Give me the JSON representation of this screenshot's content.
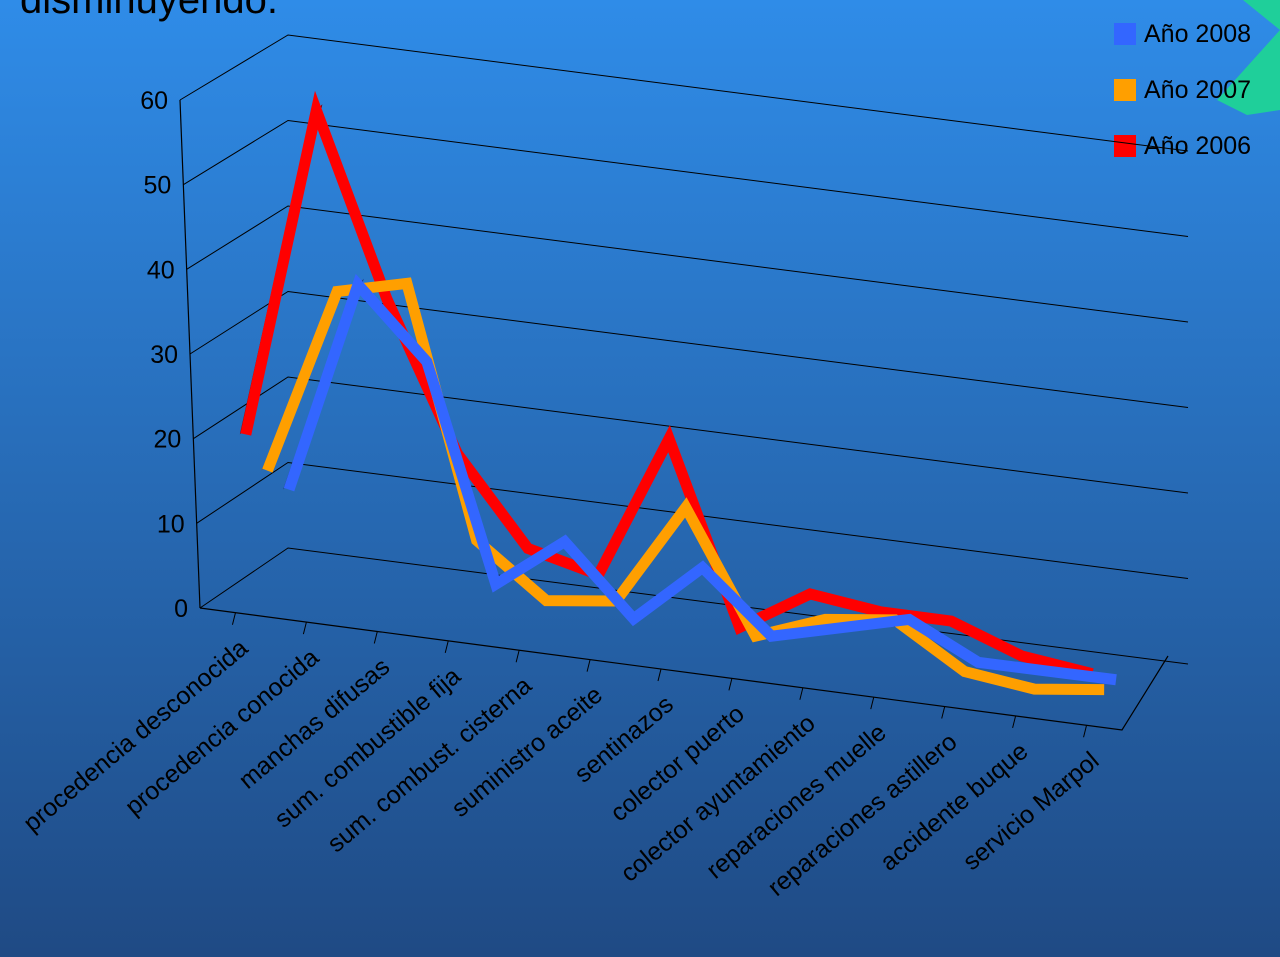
{
  "slide": {
    "title_fragment": "disminuyendo."
  },
  "colors": {
    "background_top": "#2f8ce8",
    "background_bottom": "#1f4a84",
    "grid": "#000000",
    "decoration": "#1fcf9a"
  },
  "chart_data": {
    "type": "line",
    "style": "3d-ribbon",
    "title": "",
    "xlabel": "",
    "ylabel": "",
    "ylim": [
      0,
      60
    ],
    "yticks": [
      0,
      10,
      20,
      30,
      40,
      50,
      60
    ],
    "grid": true,
    "legend_position": "top-right",
    "categories": [
      "procedencia desconocida",
      "procedencia conocida",
      "manchas difusas",
      "sum. combustible fija",
      "sum. combust. cisterna",
      "suministro aceite",
      "sentinazos",
      "colector puerto",
      "colector ayuntamiento",
      "reparaciones muelle",
      "reparaciones astillero",
      "accidente buque",
      "servicio Marpol"
    ],
    "series": [
      {
        "name": "Año 2008",
        "color": "#3366ff",
        "side_color": "#203a8a",
        "values": [
          10,
          35,
          27,
          2,
          8,
          0,
          7,
          0,
          2,
          4,
          0,
          0,
          0
        ]
      },
      {
        "name": "Año 2007",
        "color": "#ff9f00",
        "side_color": "#9a5a00",
        "values": [
          14,
          36,
          38,
          9,
          3,
          4,
          16,
          2,
          5,
          6,
          1,
          0,
          1
        ]
      },
      {
        "name": "Año 2006",
        "color": "#ff0000",
        "side_color": "#8a0000",
        "values": [
          20,
          59,
          38,
          21,
          11,
          9,
          26,
          5,
          10,
          9,
          9,
          6,
          5
        ]
      }
    ]
  }
}
